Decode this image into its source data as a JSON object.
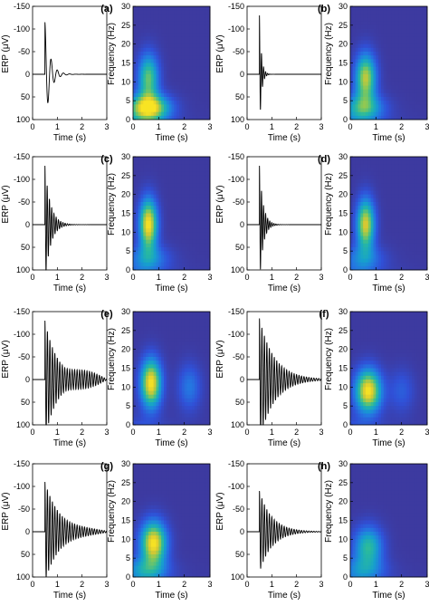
{
  "chart_data": {
    "type": "figure",
    "erp_axes": {
      "xlabel": "Time (s)",
      "ylabel": "ERP (μV)",
      "xticks": [
        "0",
        "1",
        "2",
        "3"
      ],
      "yticks": [
        "-150",
        "-100",
        "-50",
        "0",
        "50",
        "100"
      ],
      "xlim": [
        0,
        3
      ],
      "ylim": [
        100,
        -150
      ],
      "y_axis_inverted": true
    },
    "tf_axes": {
      "xlabel": "Time (s)",
      "ylabel": "Frequency (Hz)",
      "xticks": [
        "0",
        "1",
        "2",
        "3"
      ],
      "yticks": [
        "0",
        "5",
        "10",
        "15",
        "20",
        "25",
        "30"
      ],
      "xlim": [
        0,
        3
      ],
      "ylim": [
        0,
        30
      ],
      "colormap": "parula",
      "colors": {
        "background": "#3c3a9f",
        "low": "#2a6fd9",
        "mid": "#1fb4ab",
        "high": "#f5e425"
      }
    },
    "panels": [
      {
        "label": "(a)",
        "erp": {
          "onset_s": 0.5,
          "freq_hz": 4,
          "decay_s": 0.2,
          "peak_uv": -115,
          "late_osc": 0
        },
        "tf": {
          "blobs": [
            {
              "t": 0.6,
              "f": 3,
              "strength": 1.0
            },
            {
              "t": 0.6,
              "f": 11,
              "strength": 0.7
            }
          ]
        }
      },
      {
        "label": "(b)",
        "erp": {
          "onset_s": 0.5,
          "freq_hz": 12,
          "decay_s": 0.08,
          "peak_uv": -130,
          "late_osc": 0
        },
        "tf": {
          "blobs": [
            {
              "t": 0.6,
              "f": 11,
              "strength": 0.85
            },
            {
              "t": 0.5,
              "f": 3,
              "strength": 0.55
            }
          ]
        }
      },
      {
        "label": "(c)",
        "erp": {
          "onset_s": 0.5,
          "freq_hz": 11,
          "decay_s": 0.22,
          "peak_uv": -130,
          "late_osc": 0
        },
        "tf": {
          "blobs": [
            {
              "t": 0.6,
              "f": 12,
              "strength": 1.0
            },
            {
              "t": 0.6,
              "f": 3,
              "strength": 0.35
            }
          ]
        }
      },
      {
        "label": "(d)",
        "erp": {
          "onset_s": 0.5,
          "freq_hz": 12,
          "decay_s": 0.15,
          "peak_uv": -130,
          "late_osc": 0
        },
        "tf": {
          "blobs": [
            {
              "t": 0.6,
              "f": 12,
              "strength": 0.9
            },
            {
              "t": 0.5,
              "f": 3,
              "strength": 0.3
            }
          ]
        }
      },
      {
        "label": "(e)",
        "erp": {
          "onset_s": 0.5,
          "freq_hz": 10,
          "decay_s": 0.5,
          "peak_uv": -130,
          "late_osc": 15
        },
        "tf": {
          "blobs": [
            {
              "t": 0.7,
              "f": 11,
              "strength": 1.0
            },
            {
              "t": 2.2,
              "f": 10,
              "strength": 0.3
            }
          ]
        }
      },
      {
        "label": "(f)",
        "erp": {
          "onset_s": 0.5,
          "freq_hz": 10,
          "decay_s": 0.6,
          "peak_uv": -135,
          "late_osc": 0
        },
        "tf": {
          "blobs": [
            {
              "t": 0.7,
              "f": 9,
              "strength": 1.0
            },
            {
              "t": 2.0,
              "f": 9,
              "strength": 0.2
            }
          ]
        }
      },
      {
        "label": "(g)",
        "erp": {
          "onset_s": 0.5,
          "freq_hz": 10,
          "decay_s": 0.6,
          "peak_uv": -110,
          "late_osc": 3
        },
        "tf": {
          "blobs": [
            {
              "t": 0.8,
              "f": 9,
              "strength": 1.0
            },
            {
              "t": 0.5,
              "f": 2,
              "strength": 0.4
            }
          ]
        }
      },
      {
        "label": "(h)",
        "erp": {
          "onset_s": 0.5,
          "freq_hz": 10,
          "decay_s": 0.5,
          "peak_uv": -90,
          "late_osc": 0
        },
        "tf": {
          "blobs": [
            {
              "t": 0.7,
              "f": 8,
              "strength": 0.6
            },
            {
              "t": 0.5,
              "f": 2,
              "strength": 0.3
            }
          ]
        }
      }
    ]
  }
}
